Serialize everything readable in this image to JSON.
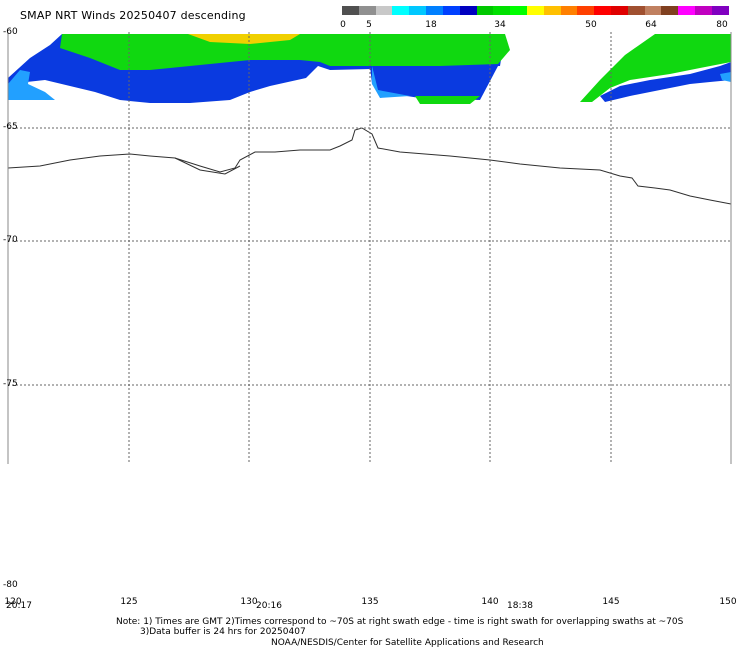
{
  "title": "SMAP NRT Winds  20250407 descending",
  "colorbar": {
    "labels": [
      "0",
      "5",
      "18",
      "34",
      "50",
      "64",
      "80"
    ],
    "segments": [
      "#505050",
      "#909090",
      "#c8c8c8",
      "#00ffff",
      "#00c8ff",
      "#0080ff",
      "#0040ff",
      "#0000c0",
      "#00c800",
      "#00e000",
      "#00ff00",
      "#ffff00",
      "#ffc000",
      "#ff8000",
      "#ff4000",
      "#ff0000",
      "#e00000",
      "#a05030",
      "#c08060",
      "#804020",
      "#ff00ff",
      "#c000c0",
      "#8000c0"
    ]
  },
  "lat_labels": [
    "-60",
    "-65",
    "-70",
    "-75",
    "-80"
  ],
  "lon_labels": [
    "120",
    "125",
    "130",
    "135",
    "140",
    "145",
    "150"
  ],
  "time_labels": [
    "20:17",
    "20:16",
    "18:38"
  ],
  "notes": {
    "line1": "Note: 1) Times are GMT 2)Times correspond to ~70S at right swath edge - time is right swath for overlapping swaths at ~70S",
    "line2": "3)Data buffer is 24 hrs for 20250407",
    "line3": "NOAA/NESDIS/Center for Satellite Applications and Research"
  },
  "colors": {
    "blue": "#0a3ae0",
    "light_blue": "#22a0ff",
    "green": "#10d810",
    "yellow": "#f0d000",
    "coast": "#303030",
    "grid": "#666666"
  }
}
